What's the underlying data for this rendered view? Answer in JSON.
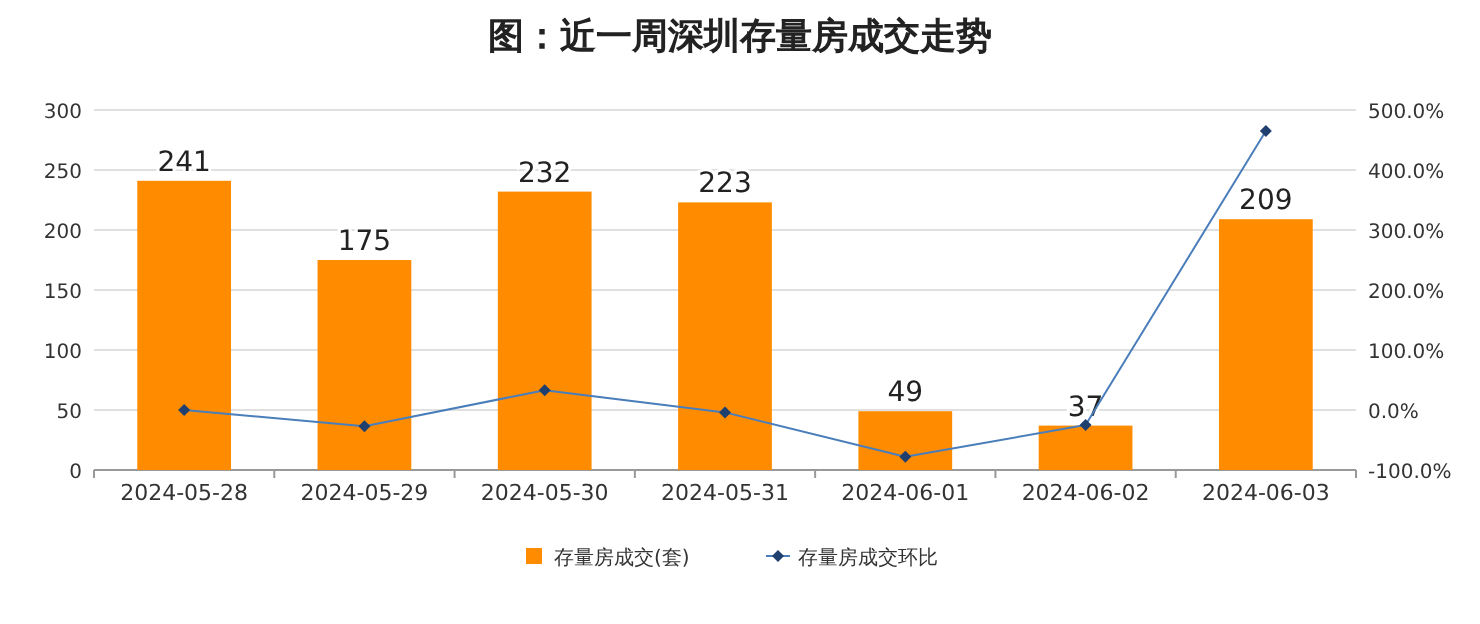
{
  "chart_data": {
    "type": "bar",
    "title": "图：近一周深圳存量房成交走势",
    "categories": [
      "2024-05-28",
      "2024-05-29",
      "2024-05-30",
      "2024-05-31",
      "2024-06-01",
      "2024-06-02",
      "2024-06-03"
    ],
    "series": [
      {
        "name": "存量房成交(套)",
        "color": "#ff8c00",
        "values": [
          241,
          175,
          232,
          223,
          49,
          37,
          209
        ],
        "value_labels": [
          "241",
          "175",
          "232",
          "223",
          "49",
          "37",
          "209"
        ]
      },
      {
        "name": "存量房成交环比",
        "type": "line",
        "axis": "y2",
        "color": "#4a7ebb",
        "values": [
          0,
          -27,
          33,
          -4,
          -78,
          -25,
          465
        ]
      }
    ],
    "ylim": [
      0,
      300
    ],
    "yticks": [
      0,
      50,
      100,
      150,
      200,
      250,
      300
    ],
    "y2lim": [
      -100,
      500
    ],
    "y2ticks": [
      {
        "value": -100,
        "label": "-100.0%"
      },
      {
        "value": 0,
        "label": "0.0%"
      },
      {
        "value": 100,
        "label": "100.0%"
      },
      {
        "value": 200,
        "label": "200.0%"
      },
      {
        "value": 300,
        "label": "300.0%"
      },
      {
        "value": 400,
        "label": "400.0%"
      },
      {
        "value": 500,
        "label": "500.0%"
      }
    ],
    "grid": "y",
    "legend": "bottom",
    "marker": "diamond",
    "line_style": "solid"
  }
}
